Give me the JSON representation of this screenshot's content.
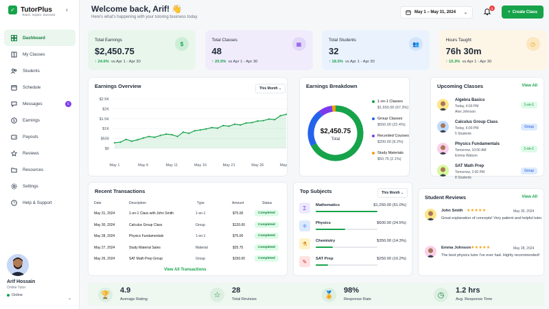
{
  "brand": {
    "name": "TutorPlus",
    "tagline": "Teach. Inspire. Succeed"
  },
  "nav": [
    {
      "label": "Dashboard",
      "icon": "dashboard-icon",
      "active": true
    },
    {
      "label": "My Classes",
      "icon": "book-icon"
    },
    {
      "label": "Students",
      "icon": "users-icon"
    },
    {
      "label": "Schedule",
      "icon": "calendar-icon"
    },
    {
      "label": "Messages",
      "icon": "chat-icon",
      "badge": "6"
    },
    {
      "label": "Earnings",
      "icon": "dollar-icon"
    },
    {
      "label": "Payouts",
      "icon": "wallet-icon"
    },
    {
      "label": "Reviews",
      "icon": "star-icon"
    },
    {
      "label": "Resources",
      "icon": "folder-icon"
    },
    {
      "label": "Settings",
      "icon": "gear-icon"
    },
    {
      "label": "Help & Support",
      "icon": "help-icon"
    }
  ],
  "profile": {
    "name": "Arif Hossain",
    "role": "Online Tutor",
    "status": "Online"
  },
  "header": {
    "title": "Welcome back, Arif! 👋",
    "subtitle": "Here's what's happening with your tutoring business today.",
    "date_range": "May 1 – May 31, 2024",
    "notif_count": "3",
    "create_label": "Create Class"
  },
  "stats": [
    {
      "label": "Total Earnings",
      "value": "$2,450.75",
      "change": "24.6%",
      "period": "vs Apr 1 - Apr 30",
      "bg": "#e9f6ec",
      "icon_bg": "#cdeed6",
      "icon_color": "#16a34a"
    },
    {
      "label": "Total Classes",
      "value": "48",
      "change": "20.0%",
      "period": "vs Apr 1 - Apr 30",
      "bg": "#f1ecfb",
      "icon_bg": "#e2d8f8",
      "icon_color": "#7c3aed"
    },
    {
      "label": "Total Students",
      "value": "32",
      "change": "18.5%",
      "period": "vs Apr 1 - Apr 30",
      "bg": "#eaf2fd",
      "icon_bg": "#d4e4fb",
      "icon_color": "#2563eb"
    },
    {
      "label": "Hours Taught",
      "value": "76h 30m",
      "change": "15.3%",
      "period": "vs Apr 1 - Apr 30",
      "bg": "#fdf5e6",
      "icon_bg": "#fbe7c0",
      "icon_color": "#f59e0b"
    }
  ],
  "earnings_overview": {
    "title": "Earnings Overview",
    "period": "This Month"
  },
  "chart_data": [
    {
      "type": "area",
      "title": "Earnings Overview",
      "x": [
        "May 1",
        "May 2",
        "May 3",
        "May 4",
        "May 5",
        "May 6",
        "May 7",
        "May 8",
        "May 9",
        "May 10",
        "May 11",
        "May 12",
        "May 13",
        "May 14",
        "May 15",
        "May 16",
        "May 17",
        "May 18",
        "May 19",
        "May 20",
        "May 21",
        "May 22",
        "May 23",
        "May 24",
        "May 25",
        "May 26",
        "May 27",
        "May 28",
        "May 29",
        "May 30",
        "May 31"
      ],
      "xticks": [
        "May 1",
        "May 6",
        "May 11",
        "May 16",
        "May 21",
        "May 26",
        "May 31"
      ],
      "yticks": [
        "$0",
        "$500",
        "$1K",
        "$1.5K",
        "$2K",
        "$2.5K"
      ],
      "ylim": [
        0,
        2500
      ],
      "series": [
        {
          "values": [
            280,
            310,
            450,
            360,
            430,
            520,
            600,
            560,
            650,
            720,
            690,
            600,
            820,
            760,
            890,
            930,
            980,
            1050,
            1020,
            1150,
            1120,
            1220,
            1180,
            1280,
            1300,
            1380,
            1400,
            1480,
            1450,
            1650,
            1720
          ]
        }
      ],
      "color": "#16a34a"
    },
    {
      "type": "pie",
      "title": "Earnings Breakdown",
      "center_value": "$2,450.75",
      "center_label": "Total",
      "slices": [
        {
          "name": "1-on-1 Classes",
          "value": 1650.0,
          "pct": "67.3%",
          "display": "$1,650.00 (67.3%)",
          "color": "#16a34a"
        },
        {
          "name": "Group Classes",
          "value": 550.0,
          "pct": "22.4%",
          "display": "$550.00 (22.4%)",
          "color": "#2563eb"
        },
        {
          "name": "Recorded Courses",
          "value": 200.0,
          "pct": "8.2%",
          "display": "$200.00 (8.2%)",
          "color": "#7c3aed"
        },
        {
          "name": "Study Materials",
          "value": 50.75,
          "pct": "2.1%",
          "display": "$50.75 (2.1%)",
          "color": "#f59e0b"
        }
      ]
    }
  ],
  "upcoming": {
    "title": "Upcoming Classes",
    "view_all": "View All",
    "items": [
      {
        "title": "Algebra Basics",
        "time": "Today, 4:00 PM",
        "who": "Alex Johnson",
        "tag": "1-on-1",
        "tag_bg": "#dcfce7",
        "tag_color": "#15803d",
        "avatar_bg": "#fde68a"
      },
      {
        "title": "Calculus Group Class",
        "time": "Today, 6:00 PM",
        "who": "5 Students",
        "tag": "Group",
        "tag_bg": "#dbeafe",
        "tag_color": "#1d4ed8",
        "avatar_bg": "#bfdbfe"
      },
      {
        "title": "Physics Fundamentals",
        "time": "Tomorrow, 10:00 AM",
        "who": "Emma Watson",
        "tag": "1-on-1",
        "tag_bg": "#dcfce7",
        "tag_color": "#15803d",
        "avatar_bg": "#fbcfe8"
      },
      {
        "title": "SAT Math Prep",
        "time": "Tomorrow, 2:00 PM",
        "who": "8 Students",
        "tag": "Group",
        "tag_bg": "#dbeafe",
        "tag_color": "#1d4ed8",
        "avatar_bg": "#d9f99d"
      }
    ]
  },
  "transactions": {
    "title": "Recent Transactions",
    "headers": [
      "Date",
      "Description",
      "Type",
      "Amount",
      "Status"
    ],
    "view_all": "View All Transactions",
    "rows": [
      {
        "date": "May 31, 2024",
        "desc": "1-on-1 Class with John Smith",
        "type": "1-on-1",
        "amount": "$75.00",
        "status": "Completed"
      },
      {
        "date": "May 30, 2024",
        "desc": "Calculus Group Class",
        "type": "Group",
        "amount": "$120.00",
        "status": "Completed"
      },
      {
        "date": "May 28, 2024",
        "desc": "Physics Fundamentals",
        "type": "1-on-1",
        "amount": "$75.00",
        "status": "Completed"
      },
      {
        "date": "May 27, 2024",
        "desc": "Study Material Sales",
        "type": "Material",
        "amount": "$25.75",
        "status": "Completed"
      },
      {
        "date": "May 26, 2024",
        "desc": "SAT Math Prep Group",
        "type": "Group",
        "amount": "$150.00",
        "status": "Completed"
      }
    ]
  },
  "top_subjects": {
    "title": "Top Subjects",
    "period": "This Month",
    "items": [
      {
        "name": "Mathematics",
        "value": "$1,250.00 (51.0%)",
        "pct": 0.51,
        "icon": "sigma-icon",
        "bg": "#ede9fe",
        "color": "#7c3aed"
      },
      {
        "name": "Physics",
        "value": "$600.00 (24.5%)",
        "pct": 0.245,
        "icon": "atom-icon",
        "bg": "#dbeafe",
        "color": "#2563eb"
      },
      {
        "name": "Chemistry",
        "value": "$350.00 (14.3%)",
        "pct": 0.143,
        "icon": "flask-icon",
        "bg": "#fef3c7",
        "color": "#d97706"
      },
      {
        "name": "SAT Prep",
        "value": "$250.00 (10.2%)",
        "pct": 0.102,
        "icon": "test-icon",
        "bg": "#fee2e2",
        "color": "#dc2626"
      }
    ]
  },
  "reviews": {
    "title": "Student Reviews",
    "view_all": "View All",
    "items": [
      {
        "name": "John Smith",
        "stars": "★★★★★",
        "date": "May 30, 2024",
        "text": "Great explanation of concepts! Very patient and helpful tutor.",
        "avatar_bg": "#fde68a"
      },
      {
        "name": "Emma Johnson",
        "stars": "★★★★★",
        "date": "May 28, 2024",
        "text": "The best physics tutor I've ever had. Highly recommended!",
        "avatar_bg": "#fbcfe8"
      }
    ]
  },
  "bottom_stats": [
    {
      "value": "4.9",
      "label": "Average Rating",
      "icon": "trophy-icon"
    },
    {
      "value": "28",
      "label": "Total Reviews",
      "icon": "star-outline-icon"
    },
    {
      "value": "98%",
      "label": "Response Rate",
      "icon": "medal-icon"
    },
    {
      "value": "1.2 hrs",
      "label": "Avg. Response Time",
      "icon": "clock-icon"
    }
  ]
}
